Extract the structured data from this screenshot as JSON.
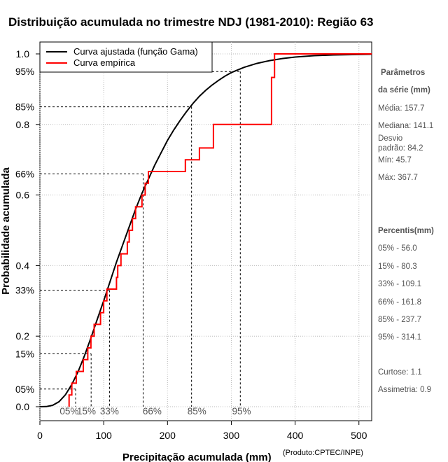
{
  "chart_data": {
    "type": "line",
    "title": "Distribuição acumulada no trimestre NDJ (1981-2010): Região 63",
    "xlabel": "Precipitação acumulada (mm)",
    "xlabel_note": "(Produto:CPTEC/INPE)",
    "ylabel": "Probabilidade acumulada",
    "xlim": [
      0,
      520
    ],
    "ylim": [
      0,
      1
    ],
    "grid": true,
    "legend_position": "top-left",
    "x_ticks": [
      "0",
      "100",
      "200",
      "300",
      "400",
      "500"
    ],
    "y_ticks": [
      "0.0",
      "0.2",
      "0.4",
      "0.6",
      "0.8",
      "1.0"
    ],
    "series": [
      {
        "name": "Curva ajustada (função Gama)",
        "color": "#000000",
        "x": [
          0,
          10,
          20,
          30,
          40,
          50,
          60,
          70,
          80,
          90,
          100,
          110,
          120,
          130,
          140,
          150,
          160,
          170,
          180,
          190,
          200,
          210,
          220,
          230,
          240,
          250,
          260,
          270,
          280,
          290,
          300,
          320,
          340,
          360,
          380,
          400,
          430,
          460,
          490,
          520
        ],
        "y": [
          0,
          0.0004,
          0.004,
          0.014,
          0.034,
          0.063,
          0.1,
          0.145,
          0.195,
          0.248,
          0.3,
          0.355,
          0.41,
          0.46,
          0.51,
          0.56,
          0.605,
          0.645,
          0.685,
          0.72,
          0.755,
          0.785,
          0.812,
          0.837,
          0.86,
          0.88,
          0.897,
          0.912,
          0.925,
          0.937,
          0.947,
          0.962,
          0.973,
          0.981,
          0.987,
          0.991,
          0.995,
          0.997,
          0.998,
          0.999
        ]
      },
      {
        "name": "Curva empírica",
        "color": "#ff0000",
        "step_x": [
          45.7,
          50,
          57,
          68,
          75,
          80,
          85,
          95,
          100,
          105,
          120,
          122,
          127,
          137,
          140,
          145,
          150,
          160,
          165,
          170,
          228,
          250,
          272,
          363,
          367.7
        ],
        "step_y": [
          0.0333,
          0.0667,
          0.1,
          0.1333,
          0.1667,
          0.2,
          0.2333,
          0.2667,
          0.3,
          0.3333,
          0.3667,
          0.4,
          0.4333,
          0.4667,
          0.5,
          0.5333,
          0.5667,
          0.6,
          0.6333,
          0.6667,
          0.7,
          0.7333,
          0.8,
          0.9333,
          1.0
        ]
      }
    ],
    "probability_marks": [
      {
        "label": "05%",
        "p": 0.05,
        "x": 56.0
      },
      {
        "label": "15%",
        "p": 0.15,
        "x": 80.3
      },
      {
        "label": "33%",
        "p": 0.33,
        "x": 109.1
      },
      {
        "label": "66%",
        "p": 0.66,
        "x": 161.8
      },
      {
        "label": "85%",
        "p": 0.85,
        "x": 237.7
      },
      {
        "label": "95%",
        "p": 0.95,
        "x": 314.1
      }
    ],
    "x_percent_labels": [
      {
        "label": "05%",
        "x": 46
      },
      {
        "label": "15%",
        "x": 73
      },
      {
        "label": "33%",
        "x": 109
      },
      {
        "label": "66%",
        "x": 176
      },
      {
        "label": "85%",
        "x": 246
      },
      {
        "label": "95%",
        "x": 316
      }
    ]
  },
  "sidebar": {
    "params_heading_1": "Parâmetros",
    "params_heading_2": "da série (mm)",
    "media": "Média: 157.7",
    "mediana": "Mediana: 141.1",
    "desvio_1": "Desvio",
    "desvio_2": "padrão: 84.2",
    "min": "Mín: 45.7",
    "max": "Máx: 367.7",
    "percentis_heading": "Percentis(mm)",
    "p05": "05% - 56.0",
    "p15": "15% - 80.3",
    "p33": "33% - 109.1",
    "p66": "66% - 161.8",
    "p85": "85% - 237.7",
    "p95": "95% - 314.1",
    "curtose": "Curtose: 1.1",
    "assimetria": "Assimetria: 0.9"
  }
}
